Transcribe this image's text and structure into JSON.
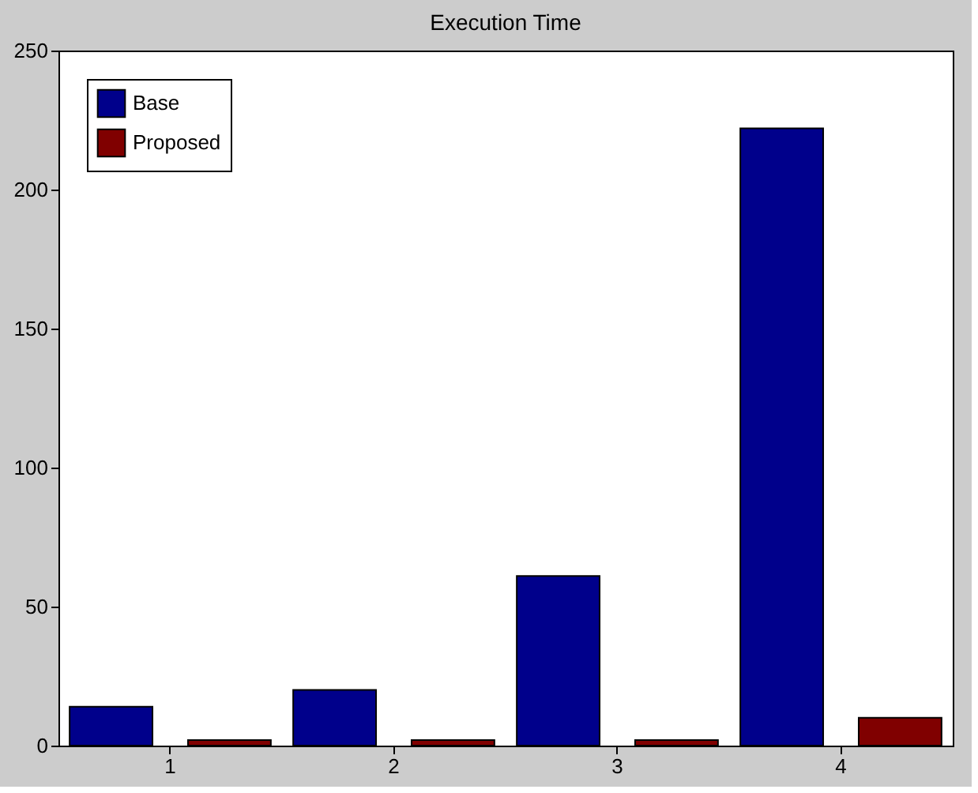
{
  "chart_data": {
    "type": "bar",
    "title": "Execution Time",
    "categories": [
      "1",
      "2",
      "3",
      "4"
    ],
    "series": [
      {
        "name": "Base",
        "color": "#00008b",
        "values": [
          14,
          20,
          61,
          222
        ]
      },
      {
        "name": "Proposed",
        "color": "#800000",
        "values": [
          2,
          2,
          2,
          10
        ]
      }
    ],
    "ylim": [
      0,
      250
    ],
    "yticks": [
      0,
      50,
      100,
      150,
      200,
      250
    ],
    "grid": false,
    "legend": "top left"
  }
}
